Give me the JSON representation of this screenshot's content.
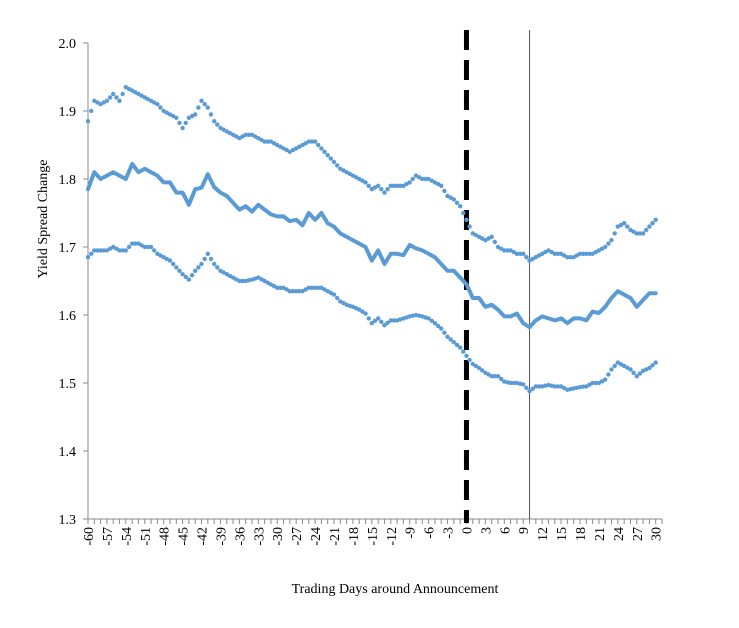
{
  "chart_data": {
    "type": "line",
    "xlabel": "Trading Days around Announcement",
    "ylabel": "Yield Spread Change",
    "xlim": [
      -60,
      31
    ],
    "ylim": [
      1.3,
      2.0
    ],
    "ytick_labels": [
      "1.3",
      "1.4",
      "1.5",
      "1.6",
      "1.7",
      "1.8",
      "1.9",
      "2.0"
    ],
    "xtick_labels": [
      "-60",
      "-57",
      "-54",
      "-51",
      "-48",
      "-45",
      "-42",
      "-39",
      "-36",
      "-33",
      "-30",
      "-27",
      "-24",
      "-21",
      "-18",
      "-15",
      "-12",
      "-9",
      "-6",
      "-3",
      "0",
      "3",
      "6",
      "9",
      "12",
      "15",
      "18",
      "21",
      "24",
      "27",
      "30"
    ],
    "vlines": [
      {
        "x": 0,
        "style": "dashed-thick",
        "color": "#000000"
      },
      {
        "x": 10,
        "style": "thin",
        "color": "#555555"
      }
    ],
    "series": [
      {
        "style": "dotted",
        "color": "#5b9bd5",
        "x": [
          -60,
          -59,
          -58,
          -57,
          -56,
          -55,
          -54,
          -53,
          -52,
          -51,
          -50,
          -49,
          -48,
          -47,
          -46,
          -45,
          -44,
          -43,
          -42,
          -41,
          -40,
          -39,
          -38,
          -37,
          -36,
          -35,
          -34,
          -33,
          -32,
          -31,
          -30,
          -29,
          -28,
          -27,
          -26,
          -25,
          -24,
          -23,
          -22,
          -21,
          -20,
          -19,
          -18,
          -17,
          -16,
          -15,
          -14,
          -13,
          -12,
          -11,
          -10,
          -9,
          -8,
          -7,
          -6,
          -5,
          -4,
          -3,
          -2,
          -1,
          0,
          1,
          2,
          3,
          4,
          5,
          6,
          7,
          8,
          9,
          10,
          11,
          12,
          13,
          14,
          15,
          16,
          17,
          18,
          19,
          20,
          21,
          22,
          23,
          24,
          25,
          26,
          27,
          28,
          29,
          30
        ],
        "values": [
          1.885,
          1.915,
          1.91,
          1.915,
          1.925,
          1.915,
          1.935,
          1.93,
          1.925,
          1.92,
          1.915,
          1.91,
          1.9,
          1.895,
          1.89,
          1.875,
          1.89,
          1.895,
          1.915,
          1.905,
          1.885,
          1.875,
          1.87,
          1.865,
          1.86,
          1.865,
          1.865,
          1.86,
          1.855,
          1.855,
          1.85,
          1.845,
          1.84,
          1.845,
          1.85,
          1.855,
          1.855,
          1.845,
          1.835,
          1.825,
          1.815,
          1.81,
          1.805,
          1.8,
          1.795,
          1.785,
          1.79,
          1.78,
          1.79,
          1.79,
          1.79,
          1.795,
          1.805,
          1.8,
          1.8,
          1.795,
          1.79,
          1.775,
          1.77,
          1.76,
          1.74,
          1.72,
          1.715,
          1.71,
          1.715,
          1.7,
          1.695,
          1.695,
          1.69,
          1.69,
          1.68,
          1.685,
          1.69,
          1.695,
          1.69,
          1.69,
          1.685,
          1.685,
          1.69,
          1.69,
          1.69,
          1.695,
          1.7,
          1.71,
          1.73,
          1.735,
          1.725,
          1.72,
          1.72,
          1.73,
          1.74
        ]
      },
      {
        "style": "solid",
        "color": "#5b9bd5",
        "x": [
          -60,
          -59,
          -58,
          -57,
          -56,
          -55,
          -54,
          -53,
          -52,
          -51,
          -50,
          -49,
          -48,
          -47,
          -46,
          -45,
          -44,
          -43,
          -42,
          -41,
          -40,
          -39,
          -38,
          -37,
          -36,
          -35,
          -34,
          -33,
          -32,
          -31,
          -30,
          -29,
          -28,
          -27,
          -26,
          -25,
          -24,
          -23,
          -22,
          -21,
          -20,
          -19,
          -18,
          -17,
          -16,
          -15,
          -14,
          -13,
          -12,
          -11,
          -10,
          -9,
          -8,
          -7,
          -6,
          -5,
          -4,
          -3,
          -2,
          -1,
          0,
          1,
          2,
          3,
          4,
          5,
          6,
          7,
          8,
          9,
          10,
          11,
          12,
          13,
          14,
          15,
          16,
          17,
          18,
          19,
          20,
          21,
          22,
          23,
          24,
          25,
          26,
          27,
          28,
          29,
          30
        ],
        "values": [
          1.785,
          1.81,
          1.8,
          1.805,
          1.81,
          1.805,
          1.8,
          1.822,
          1.81,
          1.815,
          1.81,
          1.805,
          1.795,
          1.795,
          1.78,
          1.78,
          1.762,
          1.785,
          1.787,
          1.807,
          1.788,
          1.78,
          1.775,
          1.765,
          1.755,
          1.76,
          1.752,
          1.762,
          1.755,
          1.748,
          1.745,
          1.745,
          1.738,
          1.74,
          1.732,
          1.75,
          1.74,
          1.75,
          1.735,
          1.73,
          1.72,
          1.715,
          1.71,
          1.705,
          1.7,
          1.68,
          1.695,
          1.675,
          1.69,
          1.69,
          1.688,
          1.703,
          1.698,
          1.695,
          1.69,
          1.685,
          1.675,
          1.665,
          1.665,
          1.655,
          1.645,
          1.625,
          1.625,
          1.612,
          1.615,
          1.608,
          1.598,
          1.598,
          1.602,
          1.588,
          1.582,
          1.592,
          1.598,
          1.595,
          1.592,
          1.595,
          1.588,
          1.595,
          1.595,
          1.592,
          1.605,
          1.603,
          1.612,
          1.625,
          1.635,
          1.63,
          1.625,
          1.612,
          1.622,
          1.632,
          1.632
        ]
      },
      {
        "style": "dotted",
        "color": "#5b9bd5",
        "x": [
          -60,
          -59,
          -58,
          -57,
          -56,
          -55,
          -54,
          -53,
          -52,
          -51,
          -50,
          -49,
          -48,
          -47,
          -46,
          -45,
          -44,
          -43,
          -42,
          -41,
          -40,
          -39,
          -38,
          -37,
          -36,
          -35,
          -34,
          -33,
          -32,
          -31,
          -30,
          -29,
          -28,
          -27,
          -26,
          -25,
          -24,
          -23,
          -22,
          -21,
          -20,
          -19,
          -18,
          -17,
          -16,
          -15,
          -14,
          -13,
          -12,
          -11,
          -10,
          -9,
          -8,
          -7,
          -6,
          -5,
          -4,
          -3,
          -2,
          -1,
          0,
          1,
          2,
          3,
          4,
          5,
          6,
          7,
          8,
          9,
          10,
          11,
          12,
          13,
          14,
          15,
          16,
          17,
          18,
          19,
          20,
          21,
          22,
          23,
          24,
          25,
          26,
          27,
          28,
          29,
          30
        ],
        "values": [
          1.685,
          1.695,
          1.695,
          1.695,
          1.7,
          1.695,
          1.695,
          1.705,
          1.705,
          1.7,
          1.7,
          1.69,
          1.685,
          1.68,
          1.67,
          1.66,
          1.652,
          1.665,
          1.675,
          1.69,
          1.675,
          1.665,
          1.66,
          1.655,
          1.65,
          1.65,
          1.652,
          1.655,
          1.65,
          1.645,
          1.64,
          1.64,
          1.635,
          1.635,
          1.635,
          1.64,
          1.64,
          1.64,
          1.635,
          1.63,
          1.62,
          1.615,
          1.612,
          1.608,
          1.602,
          1.588,
          1.595,
          1.585,
          1.592,
          1.592,
          1.595,
          1.598,
          1.6,
          1.598,
          1.595,
          1.588,
          1.58,
          1.568,
          1.56,
          1.552,
          1.54,
          1.528,
          1.522,
          1.515,
          1.51,
          1.51,
          1.502,
          1.5,
          1.5,
          1.498,
          1.488,
          1.495,
          1.495,
          1.497,
          1.495,
          1.495,
          1.49,
          1.492,
          1.494,
          1.495,
          1.5,
          1.5,
          1.505,
          1.52,
          1.53,
          1.525,
          1.52,
          1.51,
          1.518,
          1.522,
          1.53
        ]
      }
    ]
  }
}
